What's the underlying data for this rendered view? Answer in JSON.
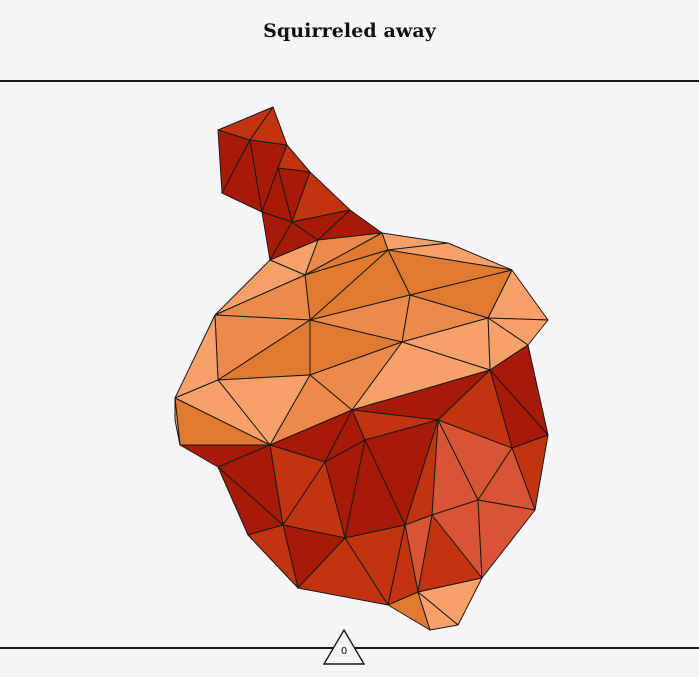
{
  "header": {
    "title": "Squirreled away"
  },
  "artwork": {
    "subject": "acorn-icon",
    "palette": {
      "cap_light": "#f8a06a",
      "cap_mid": "#ec8a4c",
      "cap_dark": "#df7a30",
      "nut_red": "#a81a08",
      "nut_mid": "#c23410",
      "nut_orange": "#d85434",
      "stroke": "#1a1a1a"
    }
  },
  "footer": {
    "counter_value": "0"
  }
}
